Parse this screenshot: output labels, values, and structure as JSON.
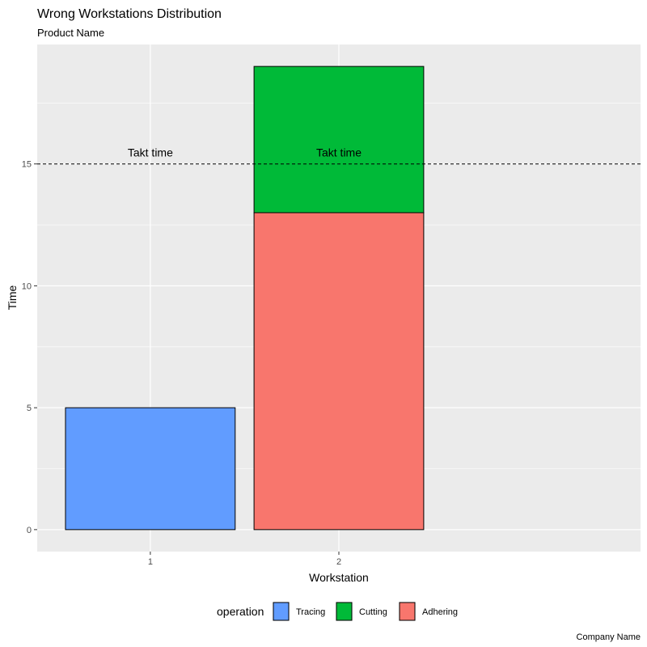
{
  "chart_data": {
    "type": "bar",
    "stacked": true,
    "title": "Wrong Workstations Distribution",
    "subtitle": "Product Name",
    "caption": "Company Name",
    "xlabel": "Workstation",
    "ylabel": "Time",
    "categories": [
      "1",
      "2"
    ],
    "ylim": [
      -0.9,
      19.9
    ],
    "yticks": [
      0,
      5,
      10,
      15
    ],
    "grid": true,
    "legend_position": "bottom",
    "legend_title": "operation",
    "series": [
      {
        "name": "Tracing",
        "color": "#619CFF",
        "values": [
          5,
          0
        ]
      },
      {
        "name": "Cutting",
        "color": "#00BA38",
        "values": [
          0,
          6
        ]
      },
      {
        "name": "Adhering",
        "color": "#F8766D",
        "values": [
          0,
          13
        ]
      }
    ],
    "reference_line": {
      "y": 15,
      "style": "dashed",
      "labels": [
        {
          "text": "Takt time",
          "category": "1"
        },
        {
          "text": "Takt time",
          "category": "2"
        }
      ]
    }
  }
}
